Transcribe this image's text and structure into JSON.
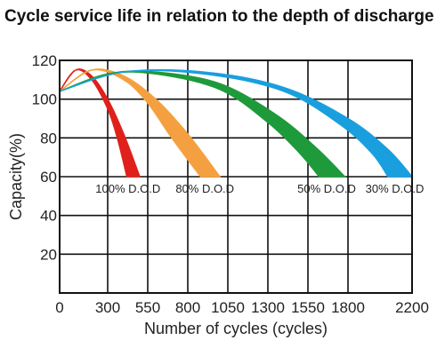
{
  "chart_data": {
    "type": "area",
    "title": "Cycle service life in relation to the depth of discharge",
    "xlabel": "Number of cycles (cycles)",
    "ylabel": "Capacity(%)",
    "xlim": [
      0,
      2200
    ],
    "ylim": [
      0,
      120
    ],
    "x_ticks": [
      0,
      300,
      550,
      800,
      1050,
      1300,
      1550,
      1800,
      2200
    ],
    "y_ticks": [
      20,
      40,
      60,
      80,
      100,
      120
    ],
    "grid": true,
    "series": [
      {
        "name": "100% D.O.D",
        "color": "#e0201b",
        "upper": [
          [
            0,
            104
          ],
          [
            100,
            115
          ],
          [
            200,
            112
          ],
          [
            300,
            100
          ],
          [
            400,
            82
          ],
          [
            500,
            60
          ]
        ],
        "lower": [
          [
            0,
            104
          ],
          [
            100,
            115
          ],
          [
            200,
            110
          ],
          [
            300,
            95
          ],
          [
            360,
            80
          ],
          [
            420,
            60
          ]
        ]
      },
      {
        "name": "80% D.O.D",
        "color": "#f5a040",
        "upper": [
          [
            0,
            104
          ],
          [
            200,
            115
          ],
          [
            400,
            112
          ],
          [
            600,
            100
          ],
          [
            800,
            82
          ],
          [
            1000,
            60
          ]
        ],
        "lower": [
          [
            0,
            104
          ],
          [
            200,
            115
          ],
          [
            400,
            110
          ],
          [
            550,
            98
          ],
          [
            700,
            80
          ],
          [
            880,
            60
          ]
        ]
      },
      {
        "name": "50% D.O.D",
        "color": "#1e9a3a",
        "upper": [
          [
            0,
            104
          ],
          [
            300,
            113
          ],
          [
            600,
            114
          ],
          [
            1000,
            108
          ],
          [
            1350,
            92
          ],
          [
            1600,
            75
          ],
          [
            1780,
            60
          ]
        ],
        "lower": [
          [
            0,
            104
          ],
          [
            300,
            113
          ],
          [
            600,
            113
          ],
          [
            1000,
            105
          ],
          [
            1300,
            88
          ],
          [
            1500,
            72
          ],
          [
            1620,
            60
          ]
        ]
      },
      {
        "name": "30% D.O.D",
        "color": "#1a9fde",
        "upper": [
          [
            0,
            104
          ],
          [
            400,
            114
          ],
          [
            900,
            114
          ],
          [
            1400,
            106
          ],
          [
            1800,
            90
          ],
          [
            2050,
            74
          ],
          [
            2200,
            60
          ]
        ],
        "lower": [
          [
            0,
            104
          ],
          [
            400,
            114
          ],
          [
            900,
            113
          ],
          [
            1400,
            104
          ],
          [
            1750,
            87
          ],
          [
            1950,
            72
          ],
          [
            2050,
            60
          ]
        ]
      }
    ],
    "annotations": [
      {
        "text": "100% D.O.D"
      },
      {
        "text": "80% D.O.D"
      },
      {
        "text": "50% D.O.D"
      },
      {
        "text": "30% D.O.D"
      }
    ]
  }
}
